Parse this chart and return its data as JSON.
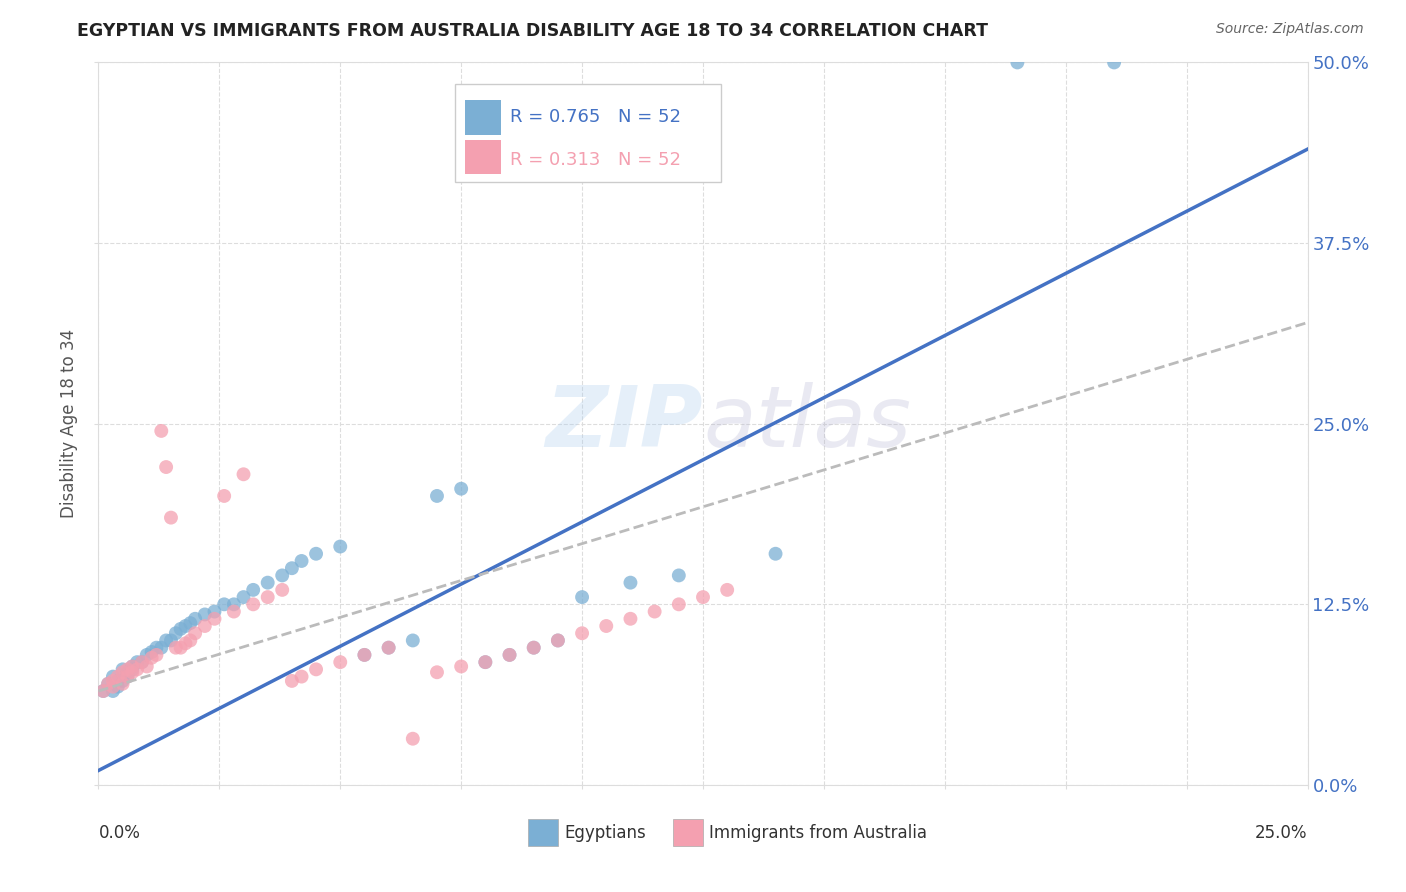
{
  "title": "EGYPTIAN VS IMMIGRANTS FROM AUSTRALIA DISABILITY AGE 18 TO 34 CORRELATION CHART",
  "source": "Source: ZipAtlas.com",
  "watermark_zip": "ZIP",
  "watermark_atlas": "atlas",
  "legend_r1": "R = 0.765",
  "legend_n1": "N = 52",
  "legend_r2": "R = 0.313",
  "legend_n2": "N = 52",
  "legend_label_1": "Egyptians",
  "legend_label_2": "Immigrants from Australia",
  "blue_scatter_color": "#7BAFD4",
  "pink_scatter_color": "#F4A0B0",
  "blue_line_color": "#4472C4",
  "pink_line_color": "#F4A0B0",
  "dashed_line_color": "#BBBBBB",
  "y_tick_labels": [
    "0.0%",
    "12.5%",
    "25.0%",
    "37.5%",
    "50.0%"
  ],
  "y_tick_values": [
    0.0,
    0.125,
    0.25,
    0.375,
    0.5
  ],
  "xlim": [
    0.0,
    0.25
  ],
  "ylim": [
    0.0,
    0.5
  ],
  "background_color": "#FFFFFF",
  "grid_color": "#DDDDDD",
  "title_color": "#222222",
  "source_color": "#666666",
  "axis_label_color": "#555555",
  "right_tick_color": "#4472C4",
  "egyptian_x": [
    0.001,
    0.002,
    0.003,
    0.003,
    0.004,
    0.004,
    0.005,
    0.005,
    0.006,
    0.006,
    0.007,
    0.007,
    0.008,
    0.009,
    0.01,
    0.011,
    0.012,
    0.013,
    0.014,
    0.015,
    0.016,
    0.017,
    0.018,
    0.019,
    0.02,
    0.022,
    0.024,
    0.026,
    0.028,
    0.03,
    0.032,
    0.035,
    0.038,
    0.04,
    0.042,
    0.045,
    0.05,
    0.055,
    0.06,
    0.065,
    0.07,
    0.075,
    0.08,
    0.085,
    0.09,
    0.095,
    0.1,
    0.11,
    0.12,
    0.14,
    0.19,
    0.21
  ],
  "egyptian_y": [
    0.065,
    0.07,
    0.065,
    0.075,
    0.068,
    0.072,
    0.08,
    0.072,
    0.075,
    0.078,
    0.08,
    0.082,
    0.085,
    0.085,
    0.09,
    0.092,
    0.095,
    0.095,
    0.1,
    0.1,
    0.105,
    0.108,
    0.11,
    0.112,
    0.115,
    0.118,
    0.12,
    0.125,
    0.125,
    0.13,
    0.135,
    0.14,
    0.145,
    0.15,
    0.155,
    0.16,
    0.165,
    0.09,
    0.095,
    0.1,
    0.2,
    0.205,
    0.085,
    0.09,
    0.095,
    0.1,
    0.13,
    0.14,
    0.145,
    0.16,
    0.5,
    0.5
  ],
  "immigrant_x": [
    0.001,
    0.002,
    0.003,
    0.003,
    0.004,
    0.005,
    0.005,
    0.006,
    0.006,
    0.007,
    0.007,
    0.008,
    0.009,
    0.01,
    0.011,
    0.012,
    0.013,
    0.014,
    0.015,
    0.016,
    0.017,
    0.018,
    0.019,
    0.02,
    0.022,
    0.024,
    0.026,
    0.028,
    0.03,
    0.032,
    0.035,
    0.038,
    0.04,
    0.042,
    0.045,
    0.05,
    0.055,
    0.06,
    0.065,
    0.07,
    0.075,
    0.08,
    0.085,
    0.09,
    0.095,
    0.1,
    0.105,
    0.11,
    0.115,
    0.12,
    0.125,
    0.13
  ],
  "immigrant_y": [
    0.065,
    0.07,
    0.072,
    0.068,
    0.075,
    0.07,
    0.078,
    0.08,
    0.075,
    0.082,
    0.078,
    0.08,
    0.085,
    0.082,
    0.088,
    0.09,
    0.245,
    0.22,
    0.185,
    0.095,
    0.095,
    0.098,
    0.1,
    0.105,
    0.11,
    0.115,
    0.2,
    0.12,
    0.215,
    0.125,
    0.13,
    0.135,
    0.072,
    0.075,
    0.08,
    0.085,
    0.09,
    0.095,
    0.032,
    0.078,
    0.082,
    0.085,
    0.09,
    0.095,
    0.1,
    0.105,
    0.11,
    0.115,
    0.12,
    0.125,
    0.13,
    0.135
  ]
}
